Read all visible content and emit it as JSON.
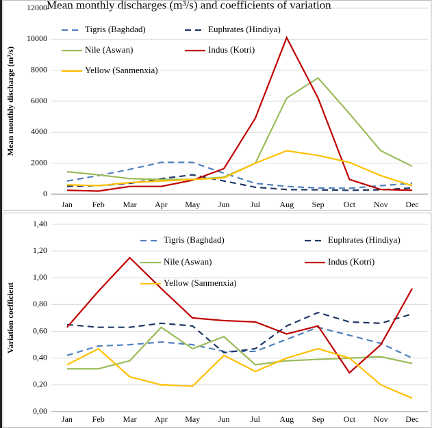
{
  "title": "Mean monthly discharges (m³/s) and coefficients of variation",
  "chart_data": [
    {
      "type": "line",
      "y_label": "Mean monthly discharge (m³/s)",
      "categories": [
        "Jan",
        "Feb",
        "Mar",
        "Apr",
        "May",
        "Jun",
        "Jul",
        "Aug",
        "Sep",
        "Oct",
        "Nov",
        "Dec"
      ],
      "ylim": [
        0,
        12000
      ],
      "yticks": [
        0,
        2000,
        4000,
        6000,
        8000,
        10000,
        12000
      ],
      "grid": true,
      "series": [
        {
          "name": "Tigris (Baghdad)",
          "color": "#4f81bd",
          "dash": "dashed",
          "values": [
            850,
            1200,
            1600,
            2050,
            2050,
            1350,
            700,
            500,
            400,
            380,
            550,
            700
          ]
        },
        {
          "name": "Euphrates (Hindiya)",
          "color": "#1f3864",
          "dash": "dashed",
          "values": [
            500,
            550,
            700,
            1000,
            1250,
            850,
            450,
            300,
            280,
            250,
            280,
            400
          ]
        },
        {
          "name": "Nile (Aswan)",
          "color": "#9bbb59",
          "dash": "solid",
          "values": [
            1450,
            1250,
            1000,
            950,
            950,
            1100,
            2000,
            6200,
            7500,
            5200,
            2800,
            1800
          ]
        },
        {
          "name": "Indus (Kotri)",
          "color": "#c00000",
          "dash": "solid",
          "values": [
            250,
            200,
            500,
            500,
            900,
            1650,
            4900,
            10100,
            6200,
            950,
            300,
            250
          ]
        },
        {
          "name": "Yellow (Sanmenxia)",
          "color": "#ffc000",
          "dash": "solid",
          "values": [
            600,
            550,
            750,
            850,
            950,
            1050,
            2000,
            2800,
            2500,
            2050,
            1200,
            550
          ]
        }
      ]
    },
    {
      "type": "line",
      "y_label": "Variation coefficient",
      "categories": [
        "Jan",
        "Feb",
        "Mar",
        "Apr",
        "May",
        "Jun",
        "Jul",
        "Aug",
        "Sep",
        "Oct",
        "Nov",
        "Dec"
      ],
      "ylim": [
        0,
        1.4
      ],
      "yticks": [
        {
          "value": 0,
          "label": "0,00"
        },
        {
          "value": 0.2,
          "label": "0,20"
        },
        {
          "value": 0.4,
          "label": "0,40"
        },
        {
          "value": 0.6,
          "label": "0,60"
        },
        {
          "value": 0.8,
          "label": "0,80"
        },
        {
          "value": 1.0,
          "label": "1,00"
        },
        {
          "value": 1.2,
          "label": "1,20"
        },
        {
          "value": 1.4,
          "label": "1,40"
        }
      ],
      "grid": true,
      "series": [
        {
          "name": "Tigris (Baghdad)",
          "color": "#4f81bd",
          "dash": "dashed",
          "values": [
            0.42,
            0.49,
            0.5,
            0.52,
            0.5,
            0.45,
            0.45,
            0.54,
            0.63,
            0.57,
            0.51,
            0.4
          ]
        },
        {
          "name": "Euphrates (Hindiya)",
          "color": "#1f3864",
          "dash": "dashed",
          "values": [
            0.65,
            0.63,
            0.63,
            0.66,
            0.64,
            0.44,
            0.47,
            0.64,
            0.74,
            0.67,
            0.66,
            0.73
          ]
        },
        {
          "name": "Nile (Aswan)",
          "color": "#9bbb59",
          "dash": "solid",
          "values": [
            0.32,
            0.32,
            0.38,
            0.63,
            0.47,
            0.56,
            0.35,
            0.38,
            0.39,
            0.4,
            0.41,
            0.36
          ]
        },
        {
          "name": "Indus (Kotri)",
          "color": "#c00000",
          "dash": "solid",
          "values": [
            0.63,
            0.9,
            1.15,
            0.92,
            0.7,
            0.68,
            0.67,
            0.58,
            0.64,
            0.29,
            0.5,
            0.92
          ]
        },
        {
          "name": "Yellow (Sanmenxia)",
          "color": "#ffc000",
          "dash": "solid",
          "values": [
            0.35,
            0.47,
            0.26,
            0.2,
            0.19,
            0.42,
            0.3,
            0.4,
            0.47,
            0.4,
            0.2,
            0.1
          ]
        }
      ]
    }
  ]
}
